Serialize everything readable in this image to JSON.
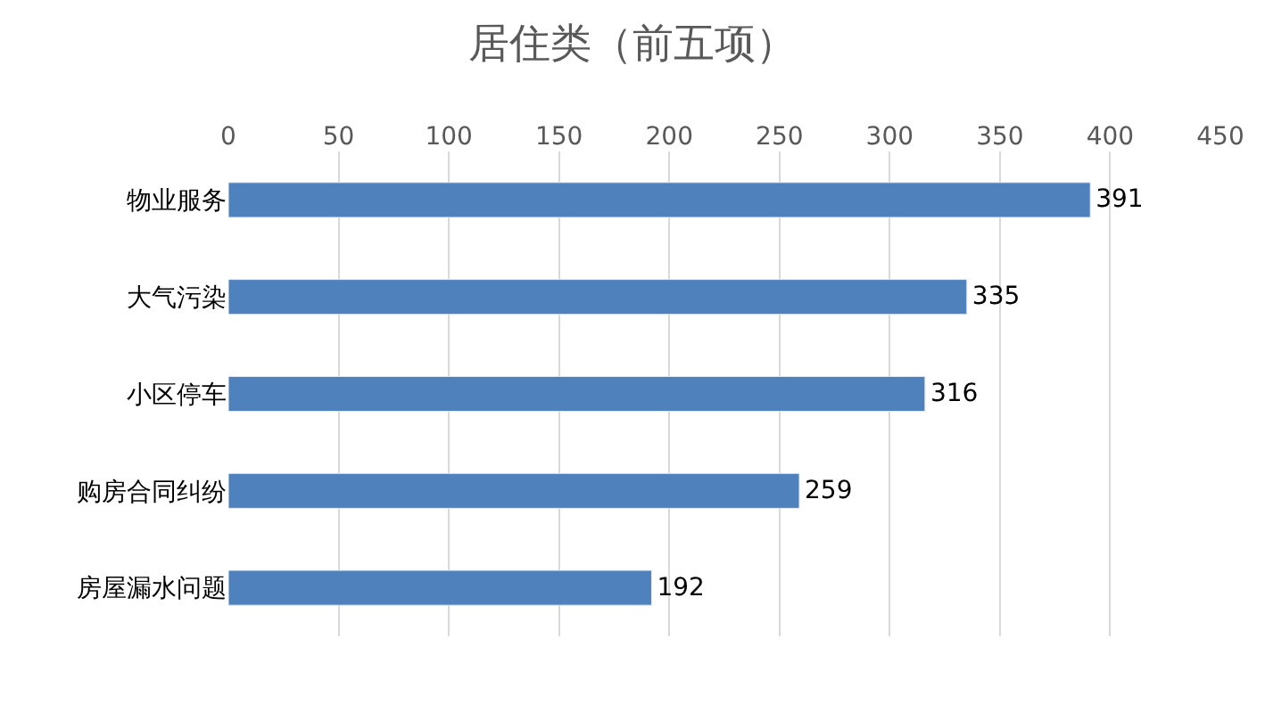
{
  "chart_data": {
    "type": "bar",
    "orientation": "horizontal",
    "title": "居住类（前五项）",
    "categories": [
      "物业服务",
      "大气污染",
      "小区停车",
      "购房合同纠纷",
      "房屋漏水问题"
    ],
    "values": [
      391,
      335,
      316,
      259,
      192
    ],
    "color": "#4f81bd",
    "xlim": [
      0,
      450
    ],
    "xticks": [
      0,
      50,
      100,
      150,
      200,
      250,
      300,
      350,
      400,
      450
    ],
    "grid": "x",
    "data_labels": true,
    "legend": false
  }
}
